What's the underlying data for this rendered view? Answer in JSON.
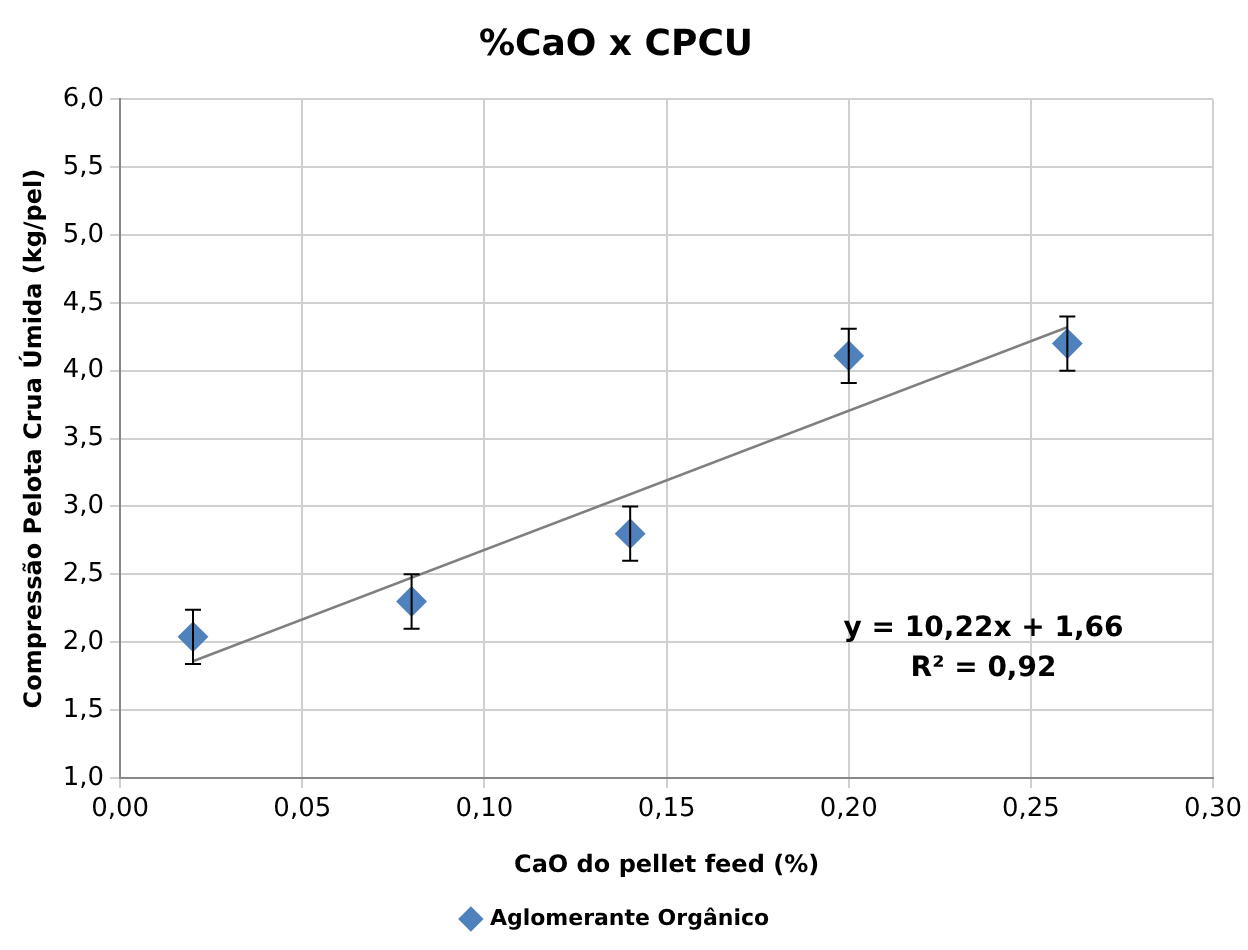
{
  "chart_data": {
    "type": "scatter",
    "title": "%CaO x CPCU",
    "xlabel": "CaO do pellet feed (%)",
    "ylabel": "Compressão Pelota Crua Úmida (kg/pel)",
    "x": [
      0.02,
      0.08,
      0.14,
      0.2,
      0.26
    ],
    "series": [
      {
        "name": "Aglomerante Orgânico",
        "color": "#4f81bd",
        "values": [
          2.04,
          2.3,
          2.8,
          4.11,
          4.2
        ],
        "errors": [
          0.2,
          0.2,
          0.2,
          0.2,
          0.2
        ],
        "marker": "diamond"
      },
      {
        "type": "line",
        "color": "#7f7f7f",
        "x": [
          0.02,
          0.26
        ],
        "values": [
          1.86,
          4.32
        ],
        "marker": "none",
        "line_style": "solid"
      }
    ],
    "xlim": [
      0,
      0.3
    ],
    "xticks": [
      {
        "value": 0,
        "label": "0,00"
      },
      {
        "value": 0.05,
        "label": "0,05"
      },
      {
        "value": 0.1,
        "label": "0,10"
      },
      {
        "value": 0.15,
        "label": "0,15"
      },
      {
        "value": 0.2,
        "label": "0,20"
      },
      {
        "value": 0.25,
        "label": "0,25"
      },
      {
        "value": 0.3,
        "label": "0,30"
      }
    ],
    "ylim": [
      1,
      6
    ],
    "yticks": [
      {
        "value": 1,
        "label": "1,0"
      },
      {
        "value": 1.5,
        "label": "1,5"
      },
      {
        "value": 2,
        "label": "2,0"
      },
      {
        "value": 2.5,
        "label": "2,5"
      },
      {
        "value": 3,
        "label": "3,0"
      },
      {
        "value": 3.5,
        "label": "3,5"
      },
      {
        "value": 4,
        "label": "4,0"
      },
      {
        "value": 4.5,
        "label": "4,5"
      },
      {
        "value": 5,
        "label": "5,0"
      },
      {
        "value": 5.5,
        "label": "5,5"
      },
      {
        "value": 6,
        "label": "6,0"
      }
    ],
    "grid": true,
    "legend": "bottom",
    "annotations": [
      "y = 10,22x + 1,66",
      "R² = 0,92"
    ]
  }
}
